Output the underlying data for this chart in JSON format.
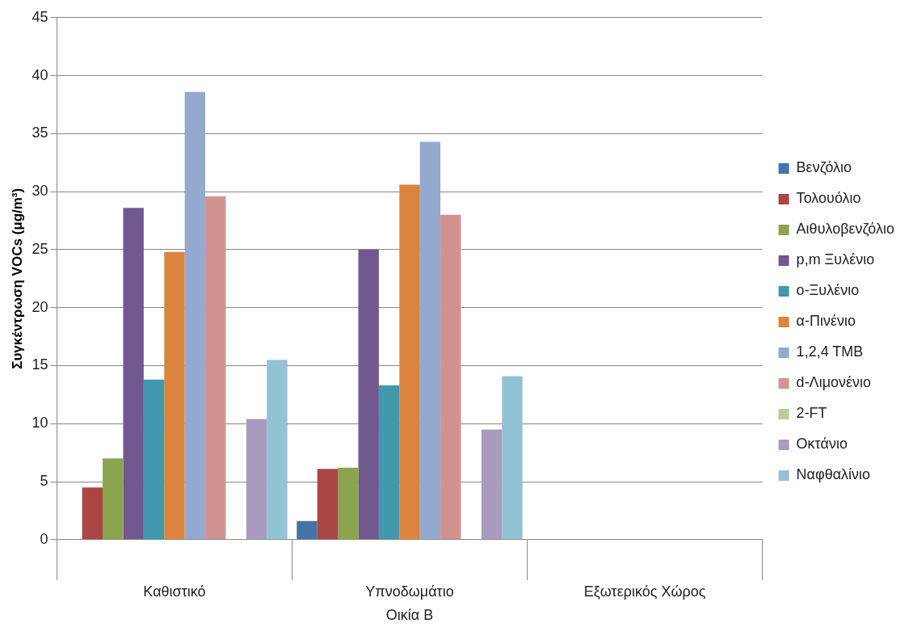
{
  "chart_data": {
    "type": "bar",
    "xlabel": "Οικία Β",
    "ylabel": "Συγκέντρωση VOCs (μg/m³)",
    "categories": [
      "Καθιστικό",
      "Υπνοδωμάτιο",
      "Εξωτερικός Χώρος"
    ],
    "series": [
      {
        "name": "Βενζόλιο",
        "color": "#4572a7",
        "values": [
          null,
          1.6,
          null
        ]
      },
      {
        "name": "Τολουόλιο",
        "color": "#aa4643",
        "values": [
          4.5,
          6.1,
          null
        ]
      },
      {
        "name": "Αιθυλοβενζόλιο",
        "color": "#89a54e",
        "values": [
          7.0,
          6.2,
          null
        ]
      },
      {
        "name": "p,m Ξυλένιο",
        "color": "#71588f",
        "values": [
          28.6,
          25.0,
          null
        ]
      },
      {
        "name": "o-Ξυλένιο",
        "color": "#4198af",
        "values": [
          13.8,
          13.3,
          null
        ]
      },
      {
        "name": "α-Πινένιο",
        "color": "#db843d",
        "values": [
          24.8,
          30.6,
          null
        ]
      },
      {
        "name": "1,2,4 TMB",
        "color": "#93a9cf",
        "values": [
          38.6,
          34.3,
          null
        ]
      },
      {
        "name": "d-Λιμονένιο",
        "color": "#d19392",
        "values": [
          29.6,
          28.0,
          null
        ]
      },
      {
        "name": "2-FT",
        "color": "#b9cd96",
        "values": [
          null,
          null,
          null
        ]
      },
      {
        "name": "Οκτάνιο",
        "color": "#a99bbd",
        "values": [
          10.4,
          9.5,
          null
        ]
      },
      {
        "name": "Ναφθαλίνιο",
        "color": "#92c3d5",
        "values": [
          15.5,
          14.1,
          null
        ]
      }
    ],
    "ylim": [
      0,
      45
    ],
    "yticks": [
      0,
      5,
      10,
      15,
      20,
      25,
      30,
      35,
      40,
      45
    ],
    "grid": "y",
    "legend": "right"
  }
}
